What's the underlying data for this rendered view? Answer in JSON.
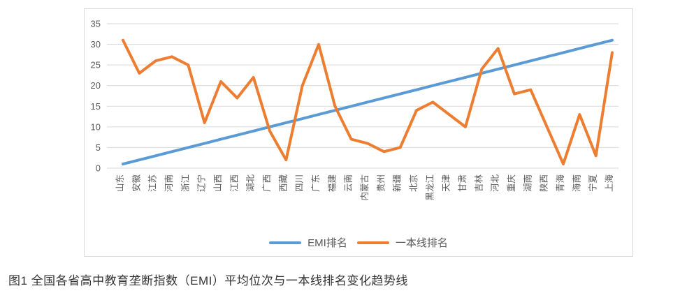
{
  "page": {
    "caption": "图1 全国各省高中教育垄断指数（EMI）平均位次与一本线排名变化趋势线"
  },
  "chart_data": {
    "type": "line",
    "title": "",
    "xlabel": "",
    "ylabel": "",
    "ylim": [
      0,
      35
    ],
    "ytick_step": 5,
    "grid": true,
    "grid_color": "#d9d9d9",
    "axis_text_color": "#595959",
    "legend_position": "bottom",
    "categories": [
      "山东",
      "安徽",
      "江苏",
      "河南",
      "浙江",
      "辽宁",
      "山西",
      "江西",
      "湖北",
      "广西",
      "西藏",
      "四川",
      "广东",
      "福建",
      "云南",
      "内蒙古",
      "贵州",
      "新疆",
      "北京",
      "黑龙江",
      "天津",
      "甘肃",
      "吉林",
      "河北",
      "重庆",
      "湖南",
      "陕西",
      "青海",
      "海南",
      "宁夏",
      "上海"
    ],
    "series": [
      {
        "name": "EMI排名",
        "color": "#5b9bd5",
        "values": [
          1,
          2,
          3,
          4,
          5,
          6,
          7,
          8,
          9,
          10,
          11,
          12,
          13,
          14,
          15,
          16,
          17,
          18,
          19,
          20,
          21,
          22,
          23,
          24,
          25,
          26,
          27,
          28,
          29,
          30,
          31
        ]
      },
      {
        "name": "一本线排名",
        "color": "#ed7d31",
        "values": [
          31,
          23,
          26,
          27,
          25,
          11,
          21,
          17,
          22,
          9,
          2,
          20,
          30,
          15,
          7,
          6,
          4,
          5,
          14,
          16,
          13,
          10,
          24,
          29,
          18,
          19,
          10,
          1,
          13,
          3,
          28
        ]
      }
    ]
  }
}
